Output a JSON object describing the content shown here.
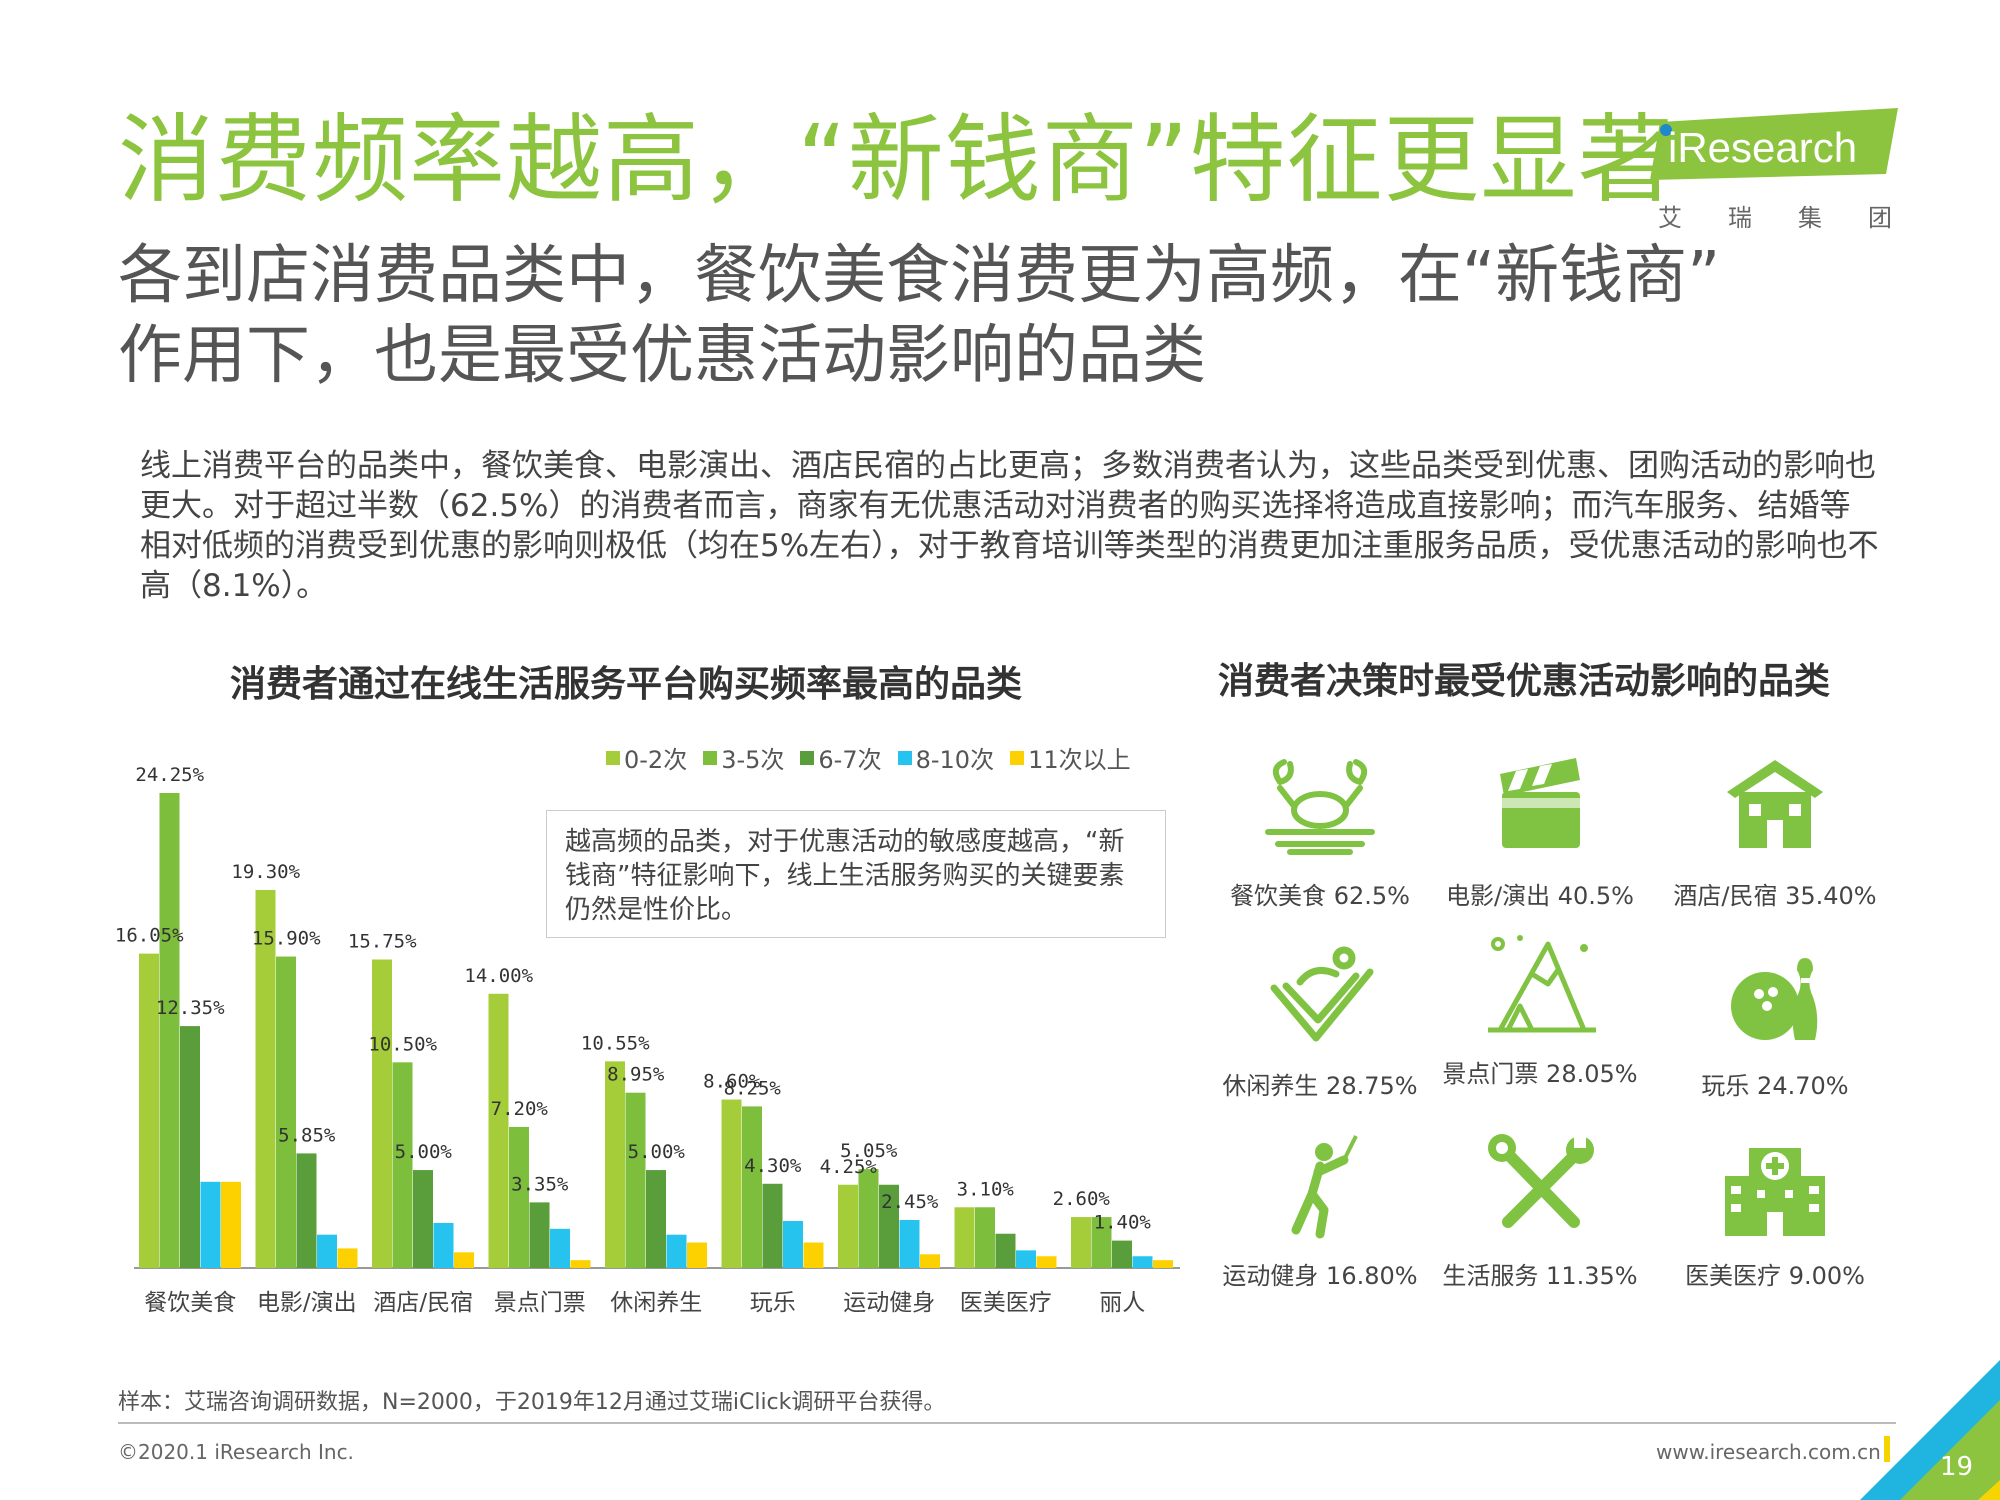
{
  "header": {
    "title": "消费频率越高，“新钱商”特征更显著",
    "subtitle_line1": "各到店消费品类中，餐饮美食消费更为高频，在“新钱商”",
    "subtitle_line2": "作用下，也是最受优惠活动影响的品类"
  },
  "logo": {
    "brand": "iResearch",
    "sub_chars": [
      "艾",
      "瑞",
      "集",
      "团"
    ]
  },
  "description": "线上消费平台的品类中，餐饮美食、电影演出、酒店民宿的占比更高；多数消费者认为，这些品类受到优惠、团购活动的影响也更大。对于超过半数（62.5%）的消费者而言，商家有无优惠活动对消费者的购买选择将造成直接影响；而汽车服务、结婚等相对低频的消费受到优惠的影响则极低（均在5%左右），对于教育培训等类型的消费更加注重服务品质，受优惠活动的影响也不高（8.1%）。",
  "left_chart_title": "消费者通过在线生活服务平台购买频率最高的品类",
  "right_chart_title": "消费者决策时最受优惠活动影响的品类",
  "note": "越高频的品类，对于优惠活动的敏感度越高，“新钱商”特征影响下，线上生活服务购买的关键要素仍然是性价比。",
  "colors": {
    "green_title": "#8cc43f",
    "series": [
      "#a5cd3a",
      "#7dbe3c",
      "#5a9e3b",
      "#25c3ee",
      "#fdd000"
    ],
    "icon_green": "#80c342"
  },
  "chart_data": {
    "type": "bar",
    "categories": [
      "餐饮美食",
      "电影/演出",
      "酒店/民宿",
      "景点门票",
      "休闲养生",
      "玩乐",
      "运动健身",
      "医美医疗",
      "丽人"
    ],
    "series": [
      {
        "name": "0-2次",
        "values": [
          16.05,
          19.3,
          15.75,
          14.0,
          10.55,
          8.6,
          4.25,
          3.1,
          2.6
        ]
      },
      {
        "name": "3-5次",
        "values": [
          24.25,
          15.9,
          10.5,
          7.2,
          8.95,
          8.25,
          5.05,
          3.1,
          2.6
        ]
      },
      {
        "name": "6-7次",
        "values": [
          12.35,
          5.85,
          5.0,
          3.35,
          5.0,
          4.3,
          4.25,
          1.75,
          1.4
        ]
      },
      {
        "name": "8-10次",
        "values": [
          4.4,
          1.7,
          2.3,
          2.0,
          1.7,
          2.4,
          2.45,
          0.9,
          0.6
        ]
      },
      {
        "name": "11次以上",
        "values": [
          4.4,
          1.0,
          0.8,
          0.4,
          1.3,
          1.3,
          0.7,
          0.6,
          0.4
        ]
      }
    ],
    "labels": [
      {
        "cat": 0,
        "series": 1,
        "text": "24.25%"
      },
      {
        "cat": 0,
        "series": 0,
        "text": "16.05%"
      },
      {
        "cat": 0,
        "series": 2,
        "text": "12.35%"
      },
      {
        "cat": 1,
        "series": 0,
        "text": "19.30%"
      },
      {
        "cat": 1,
        "series": 1,
        "text": "15.90%"
      },
      {
        "cat": 1,
        "series": 2,
        "text": "5.85%"
      },
      {
        "cat": 2,
        "series": 0,
        "text": "15.75%"
      },
      {
        "cat": 2,
        "series": 1,
        "text": "10.50%"
      },
      {
        "cat": 2,
        "series": 2,
        "text": "5.00%"
      },
      {
        "cat": 3,
        "series": 0,
        "text": "14.00%"
      },
      {
        "cat": 3,
        "series": 1,
        "text": "7.20%"
      },
      {
        "cat": 3,
        "series": 2,
        "text": "3.35%"
      },
      {
        "cat": 4,
        "series": 0,
        "text": "10.55%"
      },
      {
        "cat": 4,
        "series": 1,
        "text": "8.95%"
      },
      {
        "cat": 4,
        "series": 2,
        "text": "5.00%"
      },
      {
        "cat": 5,
        "series": 0,
        "text": "8.60%"
      },
      {
        "cat": 5,
        "series": 1,
        "text": "8.25%"
      },
      {
        "cat": 5,
        "series": 2,
        "text": "4.30%"
      },
      {
        "cat": 6,
        "series": 0,
        "text": "4.25%"
      },
      {
        "cat": 6,
        "series": 1,
        "text": "5.05%"
      },
      {
        "cat": 6,
        "series": 3,
        "text": "2.45%"
      },
      {
        "cat": 7,
        "series": 1,
        "text": "3.10%"
      },
      {
        "cat": 8,
        "series": 0,
        "text": "2.60%"
      },
      {
        "cat": 8,
        "series": 2,
        "text": "1.40%"
      }
    ],
    "ylim": [
      0,
      26
    ],
    "legend": "top-right",
    "grid": false
  },
  "influence_items": [
    {
      "label": "餐饮美食 62.5%",
      "icon": "crab-dish-icon"
    },
    {
      "label": "电影/演出 40.5%",
      "icon": "clapperboard-icon"
    },
    {
      "label": "酒店/民宿 35.40%",
      "icon": "house-icon"
    },
    {
      "label": "休闲养生 28.75%",
      "icon": "lounge-chair-icon"
    },
    {
      "label": "景点门票 28.05%",
      "icon": "mountain-icon"
    },
    {
      "label": "玩乐 24.70%",
      "icon": "bowling-icon"
    },
    {
      "label": "运动健身 16.80%",
      "icon": "golfer-icon"
    },
    {
      "label": "生活服务 11.35%",
      "icon": "tools-icon"
    },
    {
      "label": "医美医疗 9.00%",
      "icon": "hospital-icon"
    }
  ],
  "footer": {
    "footnote": "样本：艾瑞咨询调研数据，N=2000，于2019年12月通过艾瑞iClick调研平台获得。",
    "copyright": "©2020.1 iResearch Inc.",
    "site": "www.iresearch.com.cn",
    "page": "19"
  }
}
